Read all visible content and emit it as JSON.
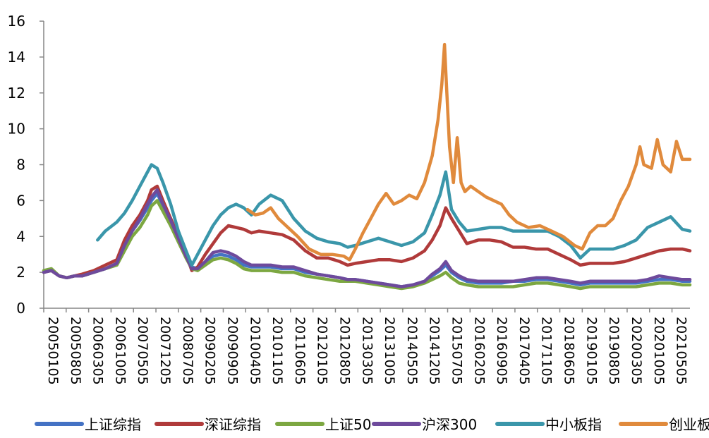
{
  "chart_data": {
    "type": "line",
    "title": "",
    "xlabel": "",
    "ylabel": "",
    "ylim": [
      0,
      16
    ],
    "yticks": [
      "0",
      "2",
      "4",
      "6",
      "8",
      "10",
      "12",
      "14",
      "16"
    ],
    "x_start": 2005.0,
    "x_end": 2021.8,
    "x_tick_labels": [
      "20050105",
      "20050805",
      "20060305",
      "20061005",
      "20070505",
      "20071205",
      "20080705",
      "20090205",
      "20090905",
      "20100405",
      "20101105",
      "20110605",
      "20120105",
      "20120805",
      "20130305",
      "20131005",
      "20140505",
      "20141205",
      "20150705",
      "20160205",
      "20160905",
      "20170405",
      "20171105",
      "20180605",
      "20190105",
      "20190805",
      "20200305",
      "20201005",
      "20210505"
    ],
    "x_tick_values": [
      2005.0,
      2005.583,
      2006.167,
      2006.75,
      2007.333,
      2007.917,
      2008.5,
      2009.083,
      2009.667,
      2010.25,
      2010.833,
      2011.417,
      2012.0,
      2012.583,
      2013.167,
      2013.75,
      2014.333,
      2014.917,
      2015.5,
      2016.083,
      2016.667,
      2017.25,
      2017.833,
      2018.417,
      2019.0,
      2019.583,
      2020.167,
      2020.75,
      2021.333
    ],
    "series": [
      {
        "name": "上证综指",
        "color": "#4472C4",
        "x": [
          2005.0,
          2005.2,
          2005.4,
          2005.6,
          2005.8,
          2006.0,
          2006.3,
          2006.6,
          2006.9,
          2007.1,
          2007.3,
          2007.5,
          2007.7,
          2007.8,
          2007.95,
          2008.1,
          2008.3,
          2008.5,
          2008.7,
          2008.85,
          2009.0,
          2009.2,
          2009.4,
          2009.6,
          2009.8,
          2010.0,
          2010.2,
          2010.4,
          2010.6,
          2010.9,
          2011.2,
          2011.5,
          2011.8,
          2012.1,
          2012.4,
          2012.7,
          2012.9,
          2013.1,
          2013.4,
          2013.7,
          2014.0,
          2014.3,
          2014.6,
          2014.9,
          2015.1,
          2015.3,
          2015.45,
          2015.6,
          2015.8,
          2016.0,
          2016.3,
          2016.6,
          2016.9,
          2017.2,
          2017.5,
          2017.8,
          2018.1,
          2018.4,
          2018.7,
          2018.95,
          2019.2,
          2019.5,
          2019.8,
          2020.1,
          2020.4,
          2020.7,
          2021.0,
          2021.3,
          2021.6,
          2021.8
        ],
        "y": [
          2.0,
          2.1,
          1.8,
          1.7,
          1.8,
          1.8,
          2.0,
          2.2,
          2.5,
          3.5,
          4.3,
          4.9,
          5.6,
          6.0,
          6.4,
          5.7,
          5.0,
          4.0,
          3.0,
          2.3,
          2.2,
          2.5,
          2.9,
          3.0,
          2.9,
          2.7,
          2.4,
          2.3,
          2.3,
          2.3,
          2.2,
          2.2,
          2.0,
          1.9,
          1.8,
          1.7,
          1.6,
          1.6,
          1.5,
          1.4,
          1.3,
          1.2,
          1.3,
          1.5,
          1.8,
          2.1,
          2.4,
          2.0,
          1.7,
          1.5,
          1.4,
          1.4,
          1.4,
          1.5,
          1.5,
          1.6,
          1.6,
          1.5,
          1.4,
          1.3,
          1.4,
          1.4,
          1.4,
          1.4,
          1.4,
          1.5,
          1.6,
          1.6,
          1.5,
          1.5
        ]
      },
      {
        "name": "深证综指",
        "color": "#B03A3A",
        "x": [
          2005.0,
          2005.2,
          2005.4,
          2005.6,
          2005.8,
          2006.0,
          2006.3,
          2006.6,
          2006.9,
          2007.1,
          2007.3,
          2007.5,
          2007.7,
          2007.8,
          2007.95,
          2008.1,
          2008.3,
          2008.5,
          2008.7,
          2008.85,
          2009.0,
          2009.2,
          2009.4,
          2009.6,
          2009.8,
          2010.0,
          2010.2,
          2010.4,
          2010.6,
          2010.9,
          2011.2,
          2011.5,
          2011.8,
          2012.1,
          2012.4,
          2012.7,
          2012.9,
          2013.1,
          2013.4,
          2013.7,
          2014.0,
          2014.3,
          2014.6,
          2014.9,
          2015.1,
          2015.3,
          2015.45,
          2015.6,
          2015.8,
          2016.0,
          2016.3,
          2016.6,
          2016.9,
          2017.2,
          2017.5,
          2017.8,
          2018.1,
          2018.4,
          2018.7,
          2018.95,
          2019.2,
          2019.5,
          2019.8,
          2020.1,
          2020.4,
          2020.7,
          2021.0,
          2021.3,
          2021.6,
          2021.8
        ],
        "y": [
          2.0,
          2.1,
          1.8,
          1.7,
          1.8,
          1.9,
          2.1,
          2.4,
          2.7,
          3.8,
          4.6,
          5.2,
          6.0,
          6.6,
          6.8,
          6.0,
          5.0,
          4.0,
          3.0,
          2.1,
          2.3,
          3.0,
          3.6,
          4.2,
          4.6,
          4.5,
          4.4,
          4.2,
          4.3,
          4.2,
          4.1,
          3.8,
          3.2,
          2.8,
          2.8,
          2.6,
          2.4,
          2.5,
          2.6,
          2.7,
          2.7,
          2.6,
          2.8,
          3.2,
          3.8,
          4.6,
          5.6,
          5.0,
          4.3,
          3.6,
          3.8,
          3.8,
          3.7,
          3.4,
          3.4,
          3.3,
          3.3,
          3.0,
          2.7,
          2.4,
          2.5,
          2.5,
          2.5,
          2.6,
          2.8,
          3.0,
          3.2,
          3.3,
          3.3,
          3.2
        ]
      },
      {
        "name": "上证50",
        "color": "#7CA741",
        "x": [
          2005.0,
          2005.2,
          2005.4,
          2005.6,
          2005.8,
          2006.0,
          2006.3,
          2006.6,
          2006.9,
          2007.1,
          2007.3,
          2007.5,
          2007.7,
          2007.8,
          2007.95,
          2008.1,
          2008.3,
          2008.5,
          2008.7,
          2008.85,
          2009.0,
          2009.2,
          2009.4,
          2009.6,
          2009.8,
          2010.0,
          2010.2,
          2010.4,
          2010.6,
          2010.9,
          2011.2,
          2011.5,
          2011.8,
          2012.1,
          2012.4,
          2012.7,
          2012.9,
          2013.1,
          2013.4,
          2013.7,
          2014.0,
          2014.3,
          2014.6,
          2014.9,
          2015.1,
          2015.3,
          2015.45,
          2015.6,
          2015.8,
          2016.0,
          2016.3,
          2016.6,
          2016.9,
          2017.2,
          2017.5,
          2017.8,
          2018.1,
          2018.4,
          2018.7,
          2018.95,
          2019.2,
          2019.5,
          2019.8,
          2020.1,
          2020.4,
          2020.7,
          2021.0,
          2021.3,
          2021.6,
          2021.8
        ],
        "y": [
          2.1,
          2.2,
          1.8,
          1.7,
          1.8,
          1.8,
          2.0,
          2.2,
          2.4,
          3.2,
          4.0,
          4.5,
          5.2,
          5.7,
          6.0,
          5.4,
          4.6,
          3.7,
          2.8,
          2.2,
          2.1,
          2.4,
          2.7,
          2.8,
          2.7,
          2.5,
          2.2,
          2.1,
          2.1,
          2.1,
          2.0,
          2.0,
          1.8,
          1.7,
          1.6,
          1.5,
          1.5,
          1.5,
          1.4,
          1.3,
          1.2,
          1.1,
          1.2,
          1.4,
          1.6,
          1.8,
          2.0,
          1.7,
          1.4,
          1.3,
          1.2,
          1.2,
          1.2,
          1.2,
          1.3,
          1.4,
          1.4,
          1.3,
          1.2,
          1.1,
          1.2,
          1.2,
          1.2,
          1.2,
          1.2,
          1.3,
          1.4,
          1.4,
          1.3,
          1.3
        ]
      },
      {
        "name": "沪深300",
        "color": "#6E4A9C",
        "x": [
          2005.0,
          2005.2,
          2005.4,
          2005.6,
          2005.8,
          2006.0,
          2006.3,
          2006.6,
          2006.9,
          2007.1,
          2007.3,
          2007.5,
          2007.7,
          2007.8,
          2007.95,
          2008.1,
          2008.3,
          2008.5,
          2008.7,
          2008.85,
          2009.0,
          2009.2,
          2009.4,
          2009.6,
          2009.8,
          2010.0,
          2010.2,
          2010.4,
          2010.6,
          2010.9,
          2011.2,
          2011.5,
          2011.8,
          2012.1,
          2012.4,
          2012.7,
          2012.9,
          2013.1,
          2013.4,
          2013.7,
          2014.0,
          2014.3,
          2014.6,
          2014.9,
          2015.1,
          2015.3,
          2015.45,
          2015.6,
          2015.8,
          2016.0,
          2016.3,
          2016.6,
          2016.9,
          2017.2,
          2017.5,
          2017.8,
          2018.1,
          2018.4,
          2018.7,
          2018.95,
          2019.2,
          2019.5,
          2019.8,
          2020.1,
          2020.4,
          2020.7,
          2021.0,
          2021.3,
          2021.6,
          2021.8
        ],
        "y": [
          2.0,
          2.1,
          1.8,
          1.7,
          1.8,
          1.8,
          2.0,
          2.2,
          2.5,
          3.5,
          4.3,
          5.0,
          5.8,
          6.2,
          6.6,
          5.8,
          4.9,
          3.9,
          2.9,
          2.2,
          2.2,
          2.6,
          3.1,
          3.2,
          3.1,
          2.9,
          2.6,
          2.4,
          2.4,
          2.4,
          2.3,
          2.3,
          2.1,
          1.9,
          1.8,
          1.7,
          1.6,
          1.6,
          1.5,
          1.4,
          1.3,
          1.2,
          1.3,
          1.5,
          1.9,
          2.2,
          2.6,
          2.1,
          1.8,
          1.6,
          1.5,
          1.5,
          1.5,
          1.5,
          1.6,
          1.7,
          1.7,
          1.6,
          1.5,
          1.4,
          1.5,
          1.5,
          1.5,
          1.5,
          1.5,
          1.6,
          1.8,
          1.7,
          1.6,
          1.6
        ]
      },
      {
        "name": "中小板指",
        "color": "#3A96AA",
        "x": [
          2006.4,
          2006.6,
          2006.9,
          2007.1,
          2007.3,
          2007.5,
          2007.7,
          2007.8,
          2007.95,
          2008.1,
          2008.3,
          2008.5,
          2008.7,
          2008.85,
          2009.0,
          2009.2,
          2009.4,
          2009.6,
          2009.8,
          2010.0,
          2010.2,
          2010.4,
          2010.6,
          2010.9,
          2011.2,
          2011.5,
          2011.8,
          2012.1,
          2012.4,
          2012.7,
          2012.9,
          2013.1,
          2013.4,
          2013.7,
          2014.0,
          2014.3,
          2014.6,
          2014.9,
          2015.1,
          2015.3,
          2015.45,
          2015.6,
          2015.8,
          2016.0,
          2016.3,
          2016.6,
          2016.9,
          2017.2,
          2017.5,
          2017.8,
          2018.1,
          2018.4,
          2018.7,
          2018.95,
          2019.2,
          2019.5,
          2019.8,
          2020.1,
          2020.4,
          2020.7,
          2021.0,
          2021.3,
          2021.6,
          2021.8
        ],
        "y": [
          3.8,
          4.3,
          4.8,
          5.3,
          6.0,
          6.8,
          7.6,
          8.0,
          7.8,
          7.0,
          5.8,
          4.3,
          3.2,
          2.4,
          3.0,
          3.8,
          4.6,
          5.2,
          5.6,
          5.8,
          5.6,
          5.2,
          5.8,
          6.3,
          6.0,
          5.0,
          4.3,
          3.9,
          3.7,
          3.6,
          3.4,
          3.5,
          3.7,
          3.9,
          3.7,
          3.5,
          3.7,
          4.2,
          5.2,
          6.3,
          7.6,
          5.5,
          4.8,
          4.3,
          4.4,
          4.5,
          4.5,
          4.3,
          4.3,
          4.3,
          4.3,
          4.0,
          3.5,
          2.8,
          3.3,
          3.3,
          3.3,
          3.5,
          3.8,
          4.5,
          4.8,
          5.1,
          4.4,
          4.3
        ]
      },
      {
        "name": "创业板指",
        "color": "#E08A3C",
        "x": [
          2010.3,
          2010.5,
          2010.7,
          2010.9,
          2011.1,
          2011.3,
          2011.6,
          2011.9,
          2012.2,
          2012.5,
          2012.8,
          2012.95,
          2013.1,
          2013.3,
          2013.5,
          2013.7,
          2013.9,
          2014.1,
          2014.3,
          2014.5,
          2014.7,
          2014.9,
          2015.1,
          2015.25,
          2015.35,
          2015.42,
          2015.48,
          2015.55,
          2015.65,
          2015.75,
          2015.85,
          2015.95,
          2016.1,
          2016.3,
          2016.5,
          2016.7,
          2016.9,
          2017.1,
          2017.3,
          2017.6,
          2017.9,
          2018.2,
          2018.5,
          2018.8,
          2019.0,
          2019.2,
          2019.4,
          2019.6,
          2019.8,
          2020.0,
          2020.2,
          2020.4,
          2020.5,
          2020.6,
          2020.8,
          2020.95,
          2021.1,
          2021.3,
          2021.45,
          2021.6,
          2021.8
        ],
        "y": [
          5.5,
          5.2,
          5.3,
          5.6,
          5.0,
          4.6,
          4.0,
          3.3,
          3.0,
          3.0,
          2.9,
          2.7,
          3.3,
          4.2,
          5.0,
          5.8,
          6.4,
          5.8,
          6.0,
          6.3,
          6.1,
          7.0,
          8.5,
          10.5,
          12.5,
          14.7,
          12.0,
          9.0,
          7.0,
          9.5,
          7.0,
          6.5,
          6.8,
          6.5,
          6.2,
          6.0,
          5.8,
          5.2,
          4.8,
          4.5,
          4.6,
          4.3,
          4.0,
          3.5,
          3.3,
          4.2,
          4.6,
          4.6,
          5.0,
          6.0,
          6.8,
          8.0,
          9.0,
          8.0,
          7.8,
          9.4,
          8.0,
          7.6,
          9.3,
          8.3,
          8.3
        ]
      }
    ]
  }
}
